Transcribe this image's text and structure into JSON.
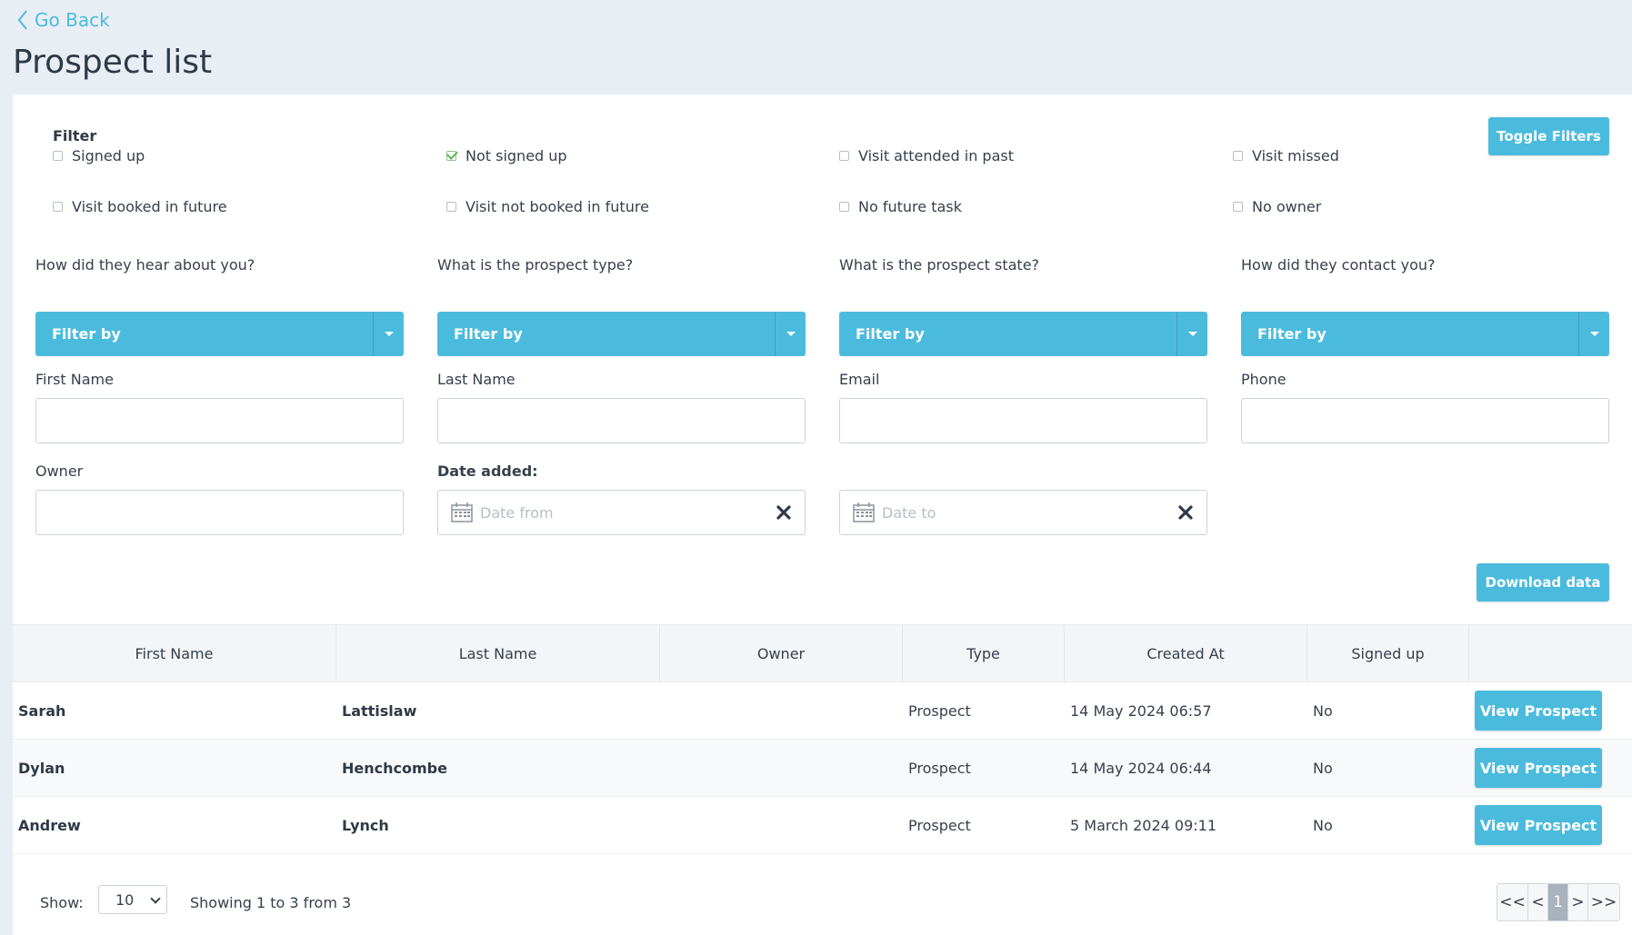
{
  "nav": {
    "back_label": "Go Back"
  },
  "page": {
    "title": "Prospect list"
  },
  "filters": {
    "title": "Filter",
    "toggle_label": "Toggle Filters",
    "checkboxes": [
      {
        "label": "Signed up",
        "checked": false
      },
      {
        "label": "Not signed up",
        "checked": true
      },
      {
        "label": "Visit attended in past",
        "checked": false
      },
      {
        "label": "Visit missed",
        "checked": false
      },
      {
        "label": "Visit booked in future",
        "checked": false
      },
      {
        "label": "Visit not booked in future",
        "checked": false
      },
      {
        "label": "No future task",
        "checked": false
      },
      {
        "label": "No owner",
        "checked": false
      }
    ],
    "dropdowns": [
      {
        "label": "How did they hear about you?",
        "value": "Filter by"
      },
      {
        "label": "What is the prospect type?",
        "value": "Filter by"
      },
      {
        "label": "What is the prospect state?",
        "value": "Filter by"
      },
      {
        "label": "How did they contact you?",
        "value": "Filter by"
      }
    ],
    "text_fields": [
      {
        "label": "First Name",
        "value": ""
      },
      {
        "label": "Last Name",
        "value": ""
      },
      {
        "label": "Email",
        "value": ""
      },
      {
        "label": "Phone",
        "value": ""
      },
      {
        "label": "Owner",
        "value": ""
      }
    ],
    "date_added": {
      "label": "Date added:",
      "from_placeholder": "Date from",
      "to_placeholder": "Date to"
    },
    "download_label": "Download data"
  },
  "table": {
    "columns": [
      "First Name",
      "Last Name",
      "Owner",
      "Type",
      "Created At",
      "Signed up",
      ""
    ],
    "rows": [
      {
        "first_name": "Sarah",
        "last_name": "Lattislaw",
        "owner": "",
        "type": "Prospect",
        "created_at": "14 May 2024 06:57",
        "signed_up": "No",
        "action": "View Prospect"
      },
      {
        "first_name": "Dylan",
        "last_name": "Henchcombe",
        "owner": "",
        "type": "Prospect",
        "created_at": "14 May 2024 06:44",
        "signed_up": "No",
        "action": "View Prospect"
      },
      {
        "first_name": "Andrew",
        "last_name": "Lynch",
        "owner": "",
        "type": "Prospect",
        "created_at": "5 March 2024 09:11",
        "signed_up": "No",
        "action": "View Prospect"
      }
    ]
  },
  "pagination": {
    "show_label": "Show:",
    "page_size": "10",
    "summary": "Showing 1 to 3 from 3",
    "controls": [
      "<<",
      "<",
      "1",
      ">",
      ">>"
    ],
    "current_page": "1"
  },
  "colors": {
    "accent": "#4bbbdd",
    "background": "#e9eef5",
    "panel": "#ffffff",
    "text": "#36404d",
    "check": "#5cb85c"
  }
}
